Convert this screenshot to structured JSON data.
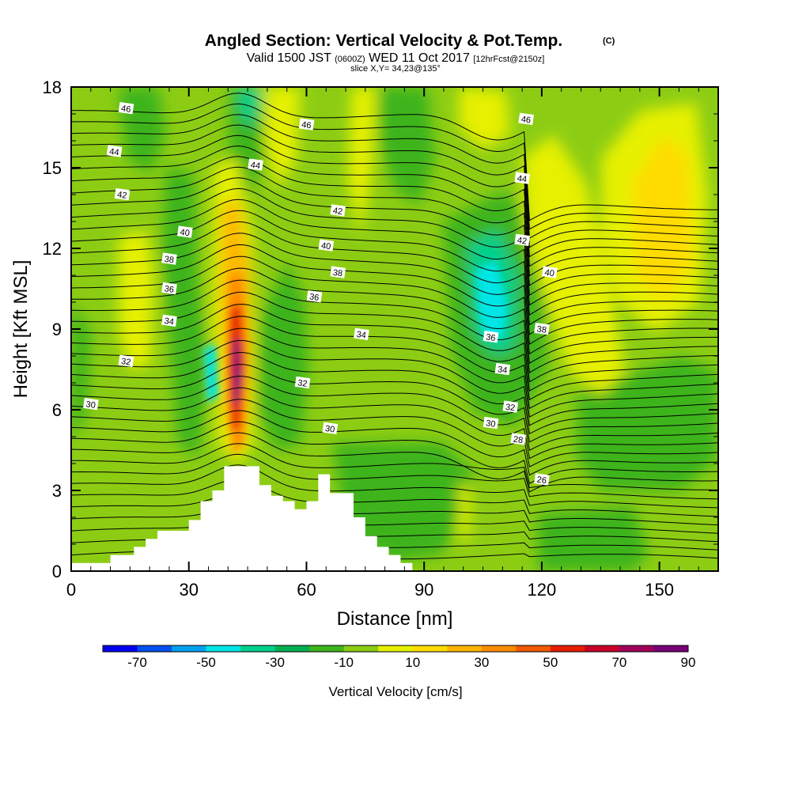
{
  "chart_data": {
    "type": "heatmap",
    "title": "Angled Section: Vertical Velocity & Pot.Temp.",
    "title_unit": "(C)",
    "subtitle_main_a": "Valid 1500 JST",
    "subtitle_small_a": "(0600Z)",
    "subtitle_main_b": "WED 11 Oct 2017",
    "subtitle_small_b": "[12hrFcst@2150z]",
    "subtitle_line2": "slice X,Y= 34,23@135°",
    "xlabel": "Distance [nm]",
    "ylabel": "Height [Kft MSL]",
    "xlim": [
      0,
      165
    ],
    "ylim": [
      0,
      18
    ],
    "x_ticks": [
      "0",
      "30",
      "60",
      "90",
      "120",
      "150"
    ],
    "y_ticks": [
      "0",
      "3",
      "6",
      "9",
      "12",
      "15",
      "18"
    ],
    "colorbar": {
      "title": "Vertical Velocity [cm/s]",
      "labels": [
        "-70",
        "-50",
        "-30",
        "-10",
        "10",
        "30",
        "50",
        "70",
        "90"
      ],
      "colors": [
        "#0000f0",
        "#0050f0",
        "#00a0f0",
        "#00e6e6",
        "#00d08c",
        "#00b050",
        "#3cb41e",
        "#8ccd14",
        "#e6f000",
        "#ffdc00",
        "#ffb400",
        "#ff8c00",
        "#f05a00",
        "#e61e00",
        "#c80028",
        "#a0005a",
        "#780078"
      ]
    },
    "potential_temperature_labels": [
      {
        "value": "46",
        "x": 14,
        "y": 17.2
      },
      {
        "value": "44",
        "x": 11,
        "y": 15.6
      },
      {
        "value": "42",
        "x": 13,
        "y": 14.0
      },
      {
        "value": "40",
        "x": 29,
        "y": 12.6
      },
      {
        "value": "38",
        "x": 25,
        "y": 11.6
      },
      {
        "value": "36",
        "x": 25,
        "y": 10.5
      },
      {
        "value": "34",
        "x": 25,
        "y": 9.3
      },
      {
        "value": "32",
        "x": 14,
        "y": 7.8
      },
      {
        "value": "30",
        "x": 5,
        "y": 6.2
      },
      {
        "value": "46",
        "x": 60,
        "y": 16.6
      },
      {
        "value": "44",
        "x": 47,
        "y": 15.1
      },
      {
        "value": "42",
        "x": 68,
        "y": 13.4
      },
      {
        "value": "40",
        "x": 65,
        "y": 12.1
      },
      {
        "value": "38",
        "x": 68,
        "y": 11.1
      },
      {
        "value": "36",
        "x": 62,
        "y": 10.2
      },
      {
        "value": "34",
        "x": 74,
        "y": 8.8
      },
      {
        "value": "32",
        "x": 59,
        "y": 7.0
      },
      {
        "value": "30",
        "x": 66,
        "y": 5.3
      },
      {
        "value": "46",
        "x": 116,
        "y": 16.8
      },
      {
        "value": "44",
        "x": 115,
        "y": 14.6
      },
      {
        "value": "42",
        "x": 115,
        "y": 12.3
      },
      {
        "value": "40",
        "x": 122,
        "y": 11.1
      },
      {
        "value": "38",
        "x": 120,
        "y": 9.0
      },
      {
        "value": "36",
        "x": 107,
        "y": 8.7
      },
      {
        "value": "34",
        "x": 110,
        "y": 7.5
      },
      {
        "value": "32",
        "x": 112,
        "y": 6.1
      },
      {
        "value": "30",
        "x": 107,
        "y": 5.5
      },
      {
        "value": "28",
        "x": 114,
        "y": 4.9
      },
      {
        "value": "26",
        "x": 120,
        "y": 3.4
      }
    ],
    "terrain_profile_x": [
      0,
      10,
      10,
      16,
      16,
      19,
      19,
      22,
      22,
      30,
      30,
      33,
      33,
      36,
      36,
      39,
      39,
      48,
      48,
      51,
      51,
      54,
      54,
      57,
      57,
      60,
      60,
      63,
      63,
      66,
      66,
      72,
      72,
      75,
      75,
      78,
      78,
      81,
      81,
      84,
      84,
      87,
      87,
      90,
      90,
      165
    ],
    "terrain_profile_kft": [
      0.3,
      0.3,
      0.6,
      0.6,
      0.9,
      0.9,
      1.2,
      1.2,
      1.5,
      1.5,
      1.9,
      1.9,
      2.6,
      2.6,
      3.0,
      3.0,
      3.9,
      3.9,
      3.2,
      3.2,
      2.8,
      2.8,
      2.6,
      2.6,
      2.3,
      2.3,
      2.6,
      2.6,
      3.6,
      3.6,
      2.9,
      2.9,
      2.0,
      2.0,
      1.3,
      1.3,
      0.9,
      0.9,
      0.6,
      0.6,
      0.3,
      0.3,
      0.0,
      0.0,
      0.0,
      0.0
    ]
  }
}
